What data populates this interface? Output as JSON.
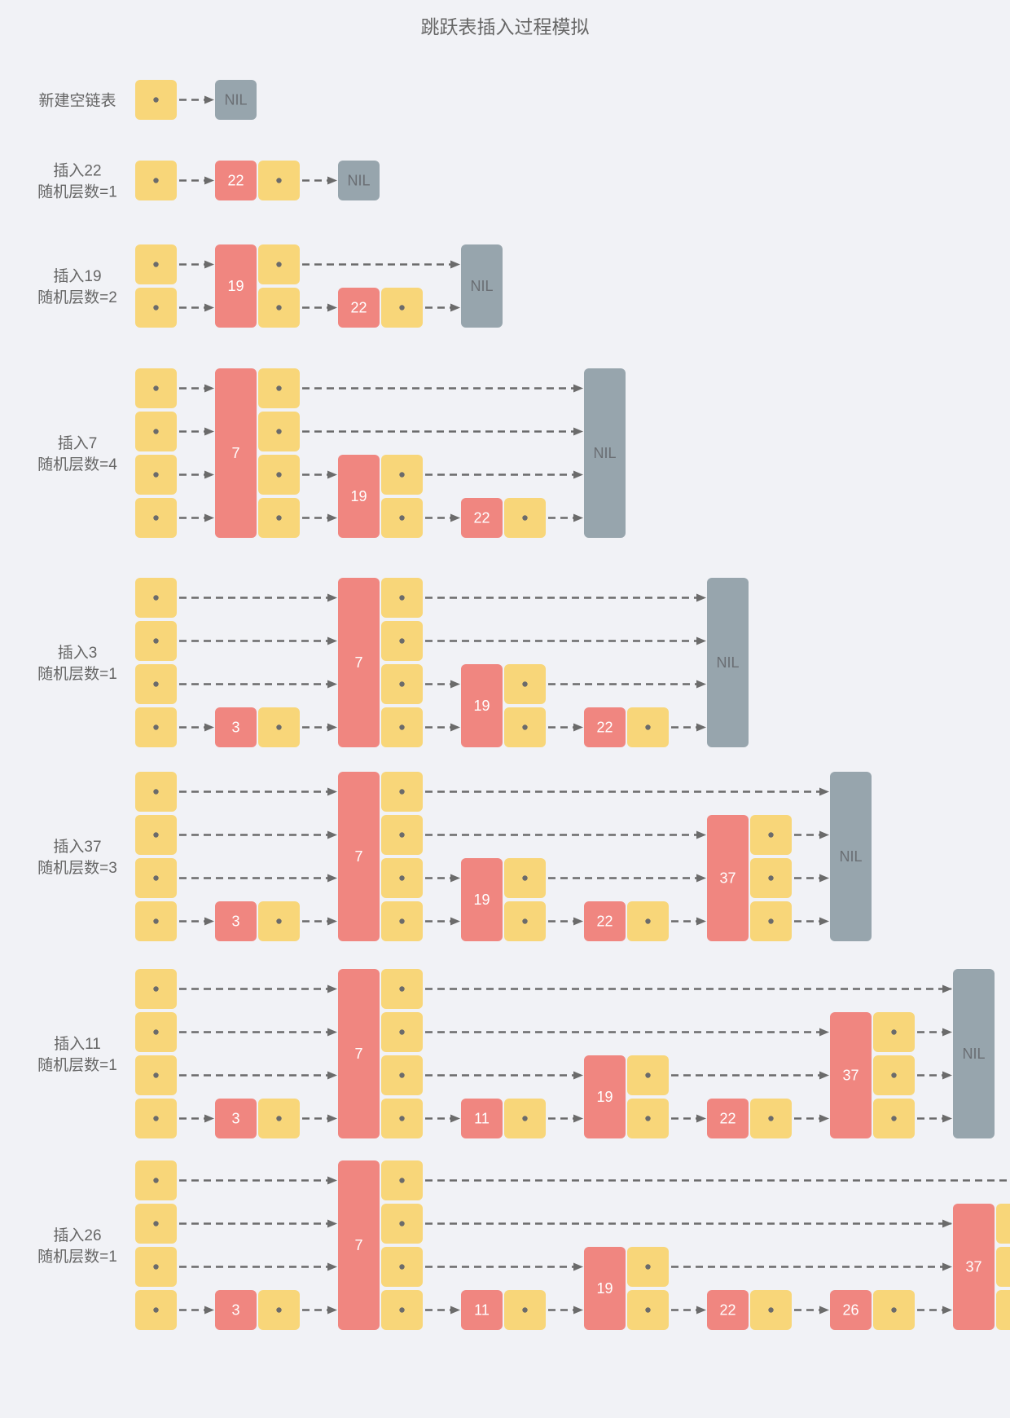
{
  "title": "跳跃表插入过程模拟",
  "colors": {
    "background": "#f1f2f6",
    "pointer_cell": "#f8d679",
    "key_cell": "#f08680",
    "nil_cell": "#97a5ad",
    "arrow": "#6b6b6b",
    "dot": "#6b6b6b"
  },
  "nil_label": "NIL",
  "steps": [
    {
      "label_lines": [
        "新建空链表"
      ],
      "levels": 1,
      "nodes": []
    },
    {
      "label_lines": [
        "插入22",
        "随机层数=1"
      ],
      "levels": 1,
      "nodes": [
        {
          "key": "22",
          "height": 1
        }
      ]
    },
    {
      "label_lines": [
        "插入19",
        "随机层数=2"
      ],
      "levels": 2,
      "nodes": [
        {
          "key": "19",
          "height": 2
        },
        {
          "key": "22",
          "height": 1
        }
      ]
    },
    {
      "label_lines": [
        "插入7",
        "随机层数=4"
      ],
      "levels": 4,
      "nodes": [
        {
          "key": "7",
          "height": 4
        },
        {
          "key": "19",
          "height": 2
        },
        {
          "key": "22",
          "height": 1
        }
      ]
    },
    {
      "label_lines": [
        "插入3",
        "随机层数=1"
      ],
      "levels": 4,
      "nodes": [
        {
          "key": "3",
          "height": 1
        },
        {
          "key": "7",
          "height": 4
        },
        {
          "key": "19",
          "height": 2
        },
        {
          "key": "22",
          "height": 1
        }
      ]
    },
    {
      "label_lines": [
        "插入37",
        "随机层数=3"
      ],
      "levels": 4,
      "nodes": [
        {
          "key": "3",
          "height": 1
        },
        {
          "key": "7",
          "height": 4
        },
        {
          "key": "19",
          "height": 2
        },
        {
          "key": "22",
          "height": 1
        },
        {
          "key": "37",
          "height": 3
        }
      ]
    },
    {
      "label_lines": [
        "插入11",
        "随机层数=1"
      ],
      "levels": 4,
      "nodes": [
        {
          "key": "3",
          "height": 1
        },
        {
          "key": "7",
          "height": 4
        },
        {
          "key": "11",
          "height": 1
        },
        {
          "key": "19",
          "height": 2
        },
        {
          "key": "22",
          "height": 1
        },
        {
          "key": "37",
          "height": 3
        }
      ]
    },
    {
      "label_lines": [
        "插入26",
        "随机层数=1"
      ],
      "levels": 4,
      "nodes": [
        {
          "key": "3",
          "height": 1
        },
        {
          "key": "7",
          "height": 4
        },
        {
          "key": "11",
          "height": 1
        },
        {
          "key": "19",
          "height": 2
        },
        {
          "key": "22",
          "height": 1
        },
        {
          "key": "26",
          "height": 1
        },
        {
          "key": "37",
          "height": 3
        }
      ]
    }
  ]
}
